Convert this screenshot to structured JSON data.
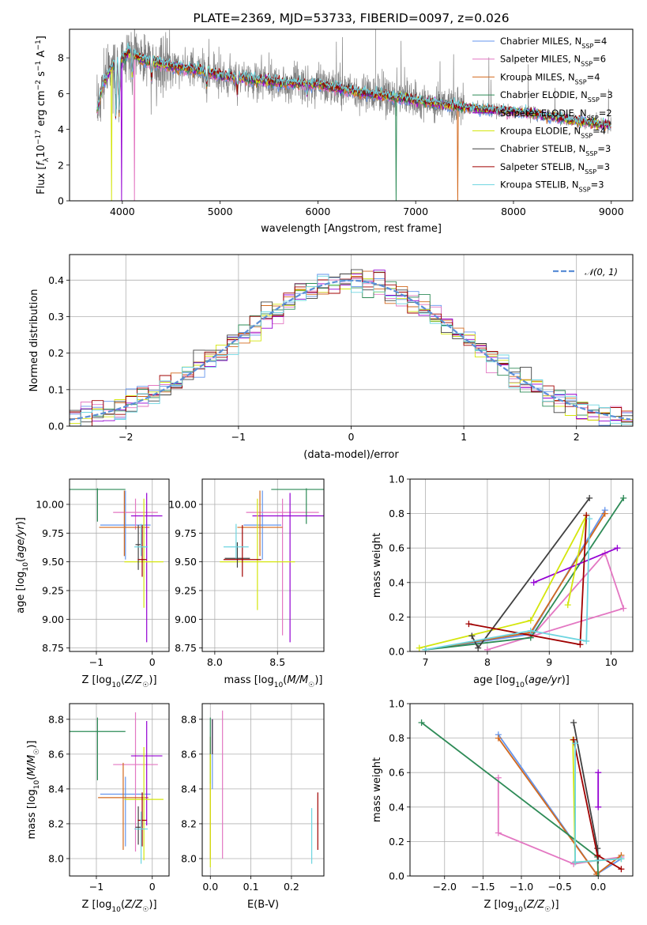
{
  "palette": [
    "#6495ed",
    "#e377c2",
    "#d2691e",
    "#2e8b57",
    "#9400d3",
    "#d4e60d",
    "#404040",
    "#a00000",
    "#6dd5e0"
  ],
  "chart_data": [
    {
      "id": "spectrum",
      "type": "line",
      "title": "PLATE=2369, MJD=53733, FIBERID=0097, z=0.026",
      "xlabel": "wavelength [Angstrom, rest frame]",
      "ylabel": "Flux [f_λ10^-17 erg cm^-2 s^-1 A^-1]",
      "xlim": [
        3460,
        9220
      ],
      "ylim": [
        0,
        9.6
      ],
      "xticks": [
        4000,
        5000,
        6000,
        7000,
        8000,
        9000
      ],
      "yticks": [
        0,
        2,
        4,
        6,
        8
      ],
      "grid": false,
      "legend_position": "top-right",
      "data_color": "#808080",
      "data_x_range": [
        3740,
        9000
      ],
      "model_x_range": [
        3740,
        9000
      ],
      "continuum": {
        "x": [
          3740,
          3800,
          3900,
          4000,
          4050,
          4200,
          4500,
          4800,
          5000,
          5300,
          5600,
          6000,
          6400,
          6800,
          7000,
          7400,
          7800,
          8200,
          8600,
          9000
        ],
        "y": [
          5.0,
          6.5,
          7.5,
          7.9,
          8.3,
          7.9,
          7.5,
          7.3,
          7.0,
          6.8,
          6.6,
          6.5,
          6.1,
          5.8,
          5.6,
          5.3,
          5.05,
          4.9,
          4.5,
          4.2
        ]
      },
      "absorption_lines": [
        {
          "x": 3934,
          "depth": 0.4
        },
        {
          "x": 3968,
          "depth": 0.35
        },
        {
          "x": 4102,
          "depth": 0.15
        },
        {
          "x": 4300,
          "depth": 0.12
        },
        {
          "x": 4861,
          "depth": 0.1
        },
        {
          "x": 5175,
          "depth": 0.12
        },
        {
          "x": 5890,
          "depth": 0.08
        }
      ],
      "model_dropouts": [
        {
          "x": 3890,
          "model": 5
        },
        {
          "x": 4125,
          "model": 1
        },
        {
          "x": 6800,
          "model": 3
        },
        {
          "x": 7430,
          "model": 2
        },
        {
          "x": 3990,
          "model": 4
        }
      ],
      "legend": [
        {
          "base": "Chabrier MILES, N",
          "sub": "SSP",
          "tail": "=4"
        },
        {
          "base": "Salpeter MILES, N",
          "sub": "SSP",
          "tail": "=6"
        },
        {
          "base": "Kroupa MILES, N",
          "sub": "SSP",
          "tail": "=4"
        },
        {
          "base": "Chabrier ELODIE, N",
          "sub": "SSP",
          "tail": "=3"
        },
        {
          "base": "Salpeter ELODIE, N",
          "sub": "SSP",
          "tail": "=2"
        },
        {
          "base": "Kroupa ELODIE, N",
          "sub": "SSP",
          "tail": "=4"
        },
        {
          "base": "Chabrier STELIB, N",
          "sub": "SSP",
          "tail": "=3"
        },
        {
          "base": "Salpeter STELIB, N",
          "sub": "SSP",
          "tail": "=3"
        },
        {
          "base": "Kroupa STELIB, N",
          "sub": "SSP",
          "tail": "=3"
        }
      ]
    },
    {
      "id": "residuals",
      "type": "line",
      "xlabel": "(data-model)/error",
      "ylabel": "Normed distribution",
      "xlim": [
        -2.5,
        2.5
      ],
      "ylim": [
        0,
        0.47
      ],
      "xticks": [
        -2,
        -1,
        0,
        1,
        2
      ],
      "yticks": [
        0.0,
        0.1,
        0.2,
        0.3,
        0.4
      ],
      "grid": true,
      "legend_position": "top-right",
      "legend_label": "𝒩(0, 1)",
      "gaussian_color": "#5b8ed6",
      "bin_width": 0.1
    },
    {
      "id": "age-vs-Z",
      "type": "scatter",
      "xlabel": "Z [log10(Z/Z☉)]",
      "ylabel": "age  [log10(age/yr)]",
      "xlim": [
        -1.48,
        0.3
      ],
      "ylim": [
        8.72,
        10.22
      ],
      "xticks": [
        -1,
        0
      ],
      "yticks": [
        8.75,
        9.0,
        9.25,
        9.5,
        9.75,
        10.0
      ],
      "grid": true,
      "errorbars": [
        {
          "x": -0.48,
          "y": 9.82,
          "xerr": 0.45,
          "yerr": [
            0.3,
            0.3
          ]
        },
        {
          "x": -0.3,
          "y": 9.93,
          "xerr": 0.4,
          "yerr": [
            0.15,
            0.12
          ]
        },
        {
          "x": -0.5,
          "y": 9.8,
          "xerr": 0.45,
          "yerr": [
            0.25,
            0.32
          ]
        },
        {
          "x": -0.98,
          "y": 10.13,
          "xerr": 0.5,
          "yerr": [
            0.28,
            0.01
          ]
        },
        {
          "x": -0.1,
          "y": 9.9,
          "xerr": 0.28,
          "yerr": [
            1.1,
            0.2
          ]
        },
        {
          "x": -0.15,
          "y": 9.5,
          "xerr": 0.35,
          "yerr": [
            0.4,
            0.55
          ]
        },
        {
          "x": -0.25,
          "y": 9.65,
          "xerr": 0.05,
          "yerr": [
            0.22,
            0.17
          ]
        },
        {
          "x": -0.18,
          "y": 9.52,
          "xerr": 0.08,
          "yerr": [
            0.15,
            0.3
          ]
        },
        {
          "x": -0.2,
          "y": 9.63,
          "xerr": 0.12,
          "yerr": [
            0.08,
            0.2
          ]
        }
      ]
    },
    {
      "id": "age-vs-mass",
      "type": "scatter",
      "xlabel": "mass [log10(M/M☉)]",
      "ylabel": "",
      "xlim": [
        7.9,
        8.87
      ],
      "ylim": [
        8.72,
        10.22
      ],
      "xticks": [
        8.0,
        8.5
      ],
      "yticks": [
        8.75,
        9.0,
        9.25,
        9.5,
        9.75,
        10.0
      ],
      "grid": true,
      "errorbars": [
        {
          "x": 8.38,
          "y": 9.82,
          "xerr": 0.15,
          "yerr": [
            0.3,
            0.3
          ]
        },
        {
          "x": 8.54,
          "y": 9.93,
          "xerr": 0.29,
          "yerr": [
            1.07,
            0.12
          ]
        },
        {
          "x": 8.36,
          "y": 9.8,
          "xerr": 0.18,
          "yerr": [
            0.25,
            0.32
          ]
        },
        {
          "x": 8.73,
          "y": 10.13,
          "xerr": 0.28,
          "yerr": [
            0.3,
            0.01
          ]
        },
        {
          "x": 8.6,
          "y": 9.9,
          "xerr": 0.3,
          "yerr": [
            1.1,
            0.2
          ]
        },
        {
          "x": 8.34,
          "y": 9.5,
          "xerr": 0.3,
          "yerr": [
            0.42,
            0.55
          ]
        },
        {
          "x": 8.18,
          "y": 9.53,
          "xerr": 0.1,
          "yerr": [
            0.08,
            0.14
          ]
        },
        {
          "x": 8.22,
          "y": 9.52,
          "xerr": 0.15,
          "yerr": [
            0.15,
            0.3
          ]
        },
        {
          "x": 8.17,
          "y": 9.63,
          "xerr": 0.1,
          "yerr": [
            0.1,
            0.2
          ]
        }
      ]
    },
    {
      "id": "massweight-vs-age",
      "type": "line",
      "xlabel": "age  [log10(age/yr)]",
      "ylabel": "mass weight",
      "xlim": [
        6.75,
        10.35
      ],
      "ylim": [
        0.0,
        1.0
      ],
      "xticks": [
        7,
        8,
        9,
        10
      ],
      "yticks": [
        0.0,
        0.2,
        0.4,
        0.6,
        0.8,
        1.0
      ],
      "grid": true,
      "series": [
        {
          "points": [
            [
              7.0,
              0.01
            ],
            [
              8.7,
              0.1
            ],
            [
              9.9,
              0.82
            ]
          ]
        },
        {
          "points": [
            [
              8.7,
              0.08
            ],
            [
              9.9,
              0.57
            ],
            [
              10.2,
              0.25
            ],
            [
              8.0,
              0.01
            ]
          ]
        },
        {
          "points": [
            [
              7.0,
              0.01
            ],
            [
              8.7,
              0.11
            ],
            [
              9.9,
              0.8
            ]
          ]
        },
        {
          "points": [
            [
              7.0,
              0.01
            ],
            [
              8.7,
              0.08
            ],
            [
              10.2,
              0.89
            ]
          ]
        },
        {
          "points": [
            [
              8.75,
              0.4
            ],
            [
              10.1,
              0.6
            ]
          ]
        },
        {
          "points": [
            [
              6.9,
              0.02
            ],
            [
              8.7,
              0.18
            ],
            [
              9.6,
              0.79
            ],
            [
              9.3,
              0.27
            ]
          ]
        },
        {
          "points": [
            [
              7.75,
              0.09
            ],
            [
              7.85,
              0.02
            ],
            [
              9.65,
              0.89
            ]
          ]
        },
        {
          "points": [
            [
              7.7,
              0.16
            ],
            [
              9.5,
              0.04
            ],
            [
              9.6,
              0.79
            ]
          ]
        },
        {
          "points": [
            [
              7.0,
              0.01
            ],
            [
              8.7,
              0.12
            ],
            [
              9.6,
              0.06
            ],
            [
              9.65,
              0.77
            ]
          ]
        }
      ]
    },
    {
      "id": "mass-vs-Z",
      "type": "scatter",
      "xlabel": "Z [log10(Z/Z☉)]",
      "ylabel": "mass [log10(M/M☉)]",
      "xlim": [
        -1.48,
        0.3
      ],
      "ylim": [
        7.9,
        8.89
      ],
      "xticks": [
        -1,
        0
      ],
      "yticks": [
        8.0,
        8.2,
        8.4,
        8.6,
        8.8
      ],
      "grid": true,
      "errorbars": [
        {
          "x": -0.48,
          "y": 8.37,
          "xerr": 0.45,
          "yerr": [
            0.3,
            0.1
          ]
        },
        {
          "x": -0.3,
          "y": 8.54,
          "xerr": 0.4,
          "yerr": [
            0.5,
            0.3
          ]
        },
        {
          "x": -0.52,
          "y": 8.35,
          "xerr": 0.45,
          "yerr": [
            0.3,
            0.2
          ]
        },
        {
          "x": -0.98,
          "y": 8.73,
          "xerr": 0.5,
          "yerr": [
            0.28,
            0.08
          ]
        },
        {
          "x": -0.1,
          "y": 8.59,
          "xerr": 0.28,
          "yerr": [
            0.4,
            0.2
          ]
        },
        {
          "x": -0.15,
          "y": 8.34,
          "xerr": 0.35,
          "yerr": [
            0.35,
            0.3
          ]
        },
        {
          "x": -0.25,
          "y": 8.18,
          "xerr": 0.05,
          "yerr": [
            0.1,
            0.12
          ]
        },
        {
          "x": -0.18,
          "y": 8.22,
          "xerr": 0.08,
          "yerr": [
            0.15,
            0.16
          ]
        },
        {
          "x": -0.2,
          "y": 8.17,
          "xerr": 0.12,
          "yerr": [
            0.2,
            0.1
          ]
        }
      ]
    },
    {
      "id": "mass-vs-ebv",
      "type": "scatter",
      "xlabel": "E(B-V)",
      "ylabel": "",
      "xlim": [
        -0.02,
        0.28
      ],
      "ylim": [
        7.9,
        8.89
      ],
      "xticks": [
        0.0,
        0.1,
        0.2
      ],
      "yticks": [
        8.0,
        8.2,
        8.4,
        8.6,
        8.8
      ],
      "grid": true,
      "errorbars": [
        {
          "x": 0.005,
          "y": 8.7,
          "xerr": 0,
          "yerr": [
            0.3,
            0.1
          ]
        },
        {
          "x": 0.03,
          "y": 8.55,
          "xerr": 0,
          "yerr": [
            0.55,
            0.3
          ]
        },
        {
          "x": 0.0,
          "y": 8.5,
          "xerr": 0,
          "yerr": [
            0.5,
            0.2
          ]
        },
        {
          "x": 0.0,
          "y": 8.73,
          "xerr": 0,
          "yerr": [
            0.3,
            0.08
          ]
        },
        {
          "x": 0.005,
          "y": 8.7,
          "xerr": 0,
          "yerr": [
            0.1,
            0.1
          ]
        },
        {
          "x": 0.0,
          "y": 8.35,
          "xerr": 0,
          "yerr": [
            0.4,
            0.25
          ]
        },
        {
          "x": 0.005,
          "y": 8.7,
          "xerr": 0,
          "yerr": [
            0.1,
            0.1
          ]
        },
        {
          "x": 0.265,
          "y": 8.2,
          "xerr": 0,
          "yerr": [
            0.15,
            0.18
          ]
        },
        {
          "x": 0.25,
          "y": 8.17,
          "xerr": 0,
          "yerr": [
            0.2,
            0.12
          ]
        }
      ]
    },
    {
      "id": "massweight-vs-Z",
      "type": "line",
      "xlabel": "Z [log10(Z/Z☉)]",
      "ylabel": "mass weight",
      "xlim": [
        -2.45,
        0.45
      ],
      "ylim": [
        0.0,
        1.0
      ],
      "xticks": [
        -2.0,
        -1.5,
        -1.0,
        -0.5,
        0.0
      ],
      "yticks": [
        0.0,
        0.2,
        0.4,
        0.6,
        0.8,
        1.0
      ],
      "grid": true,
      "series": [
        {
          "points": [
            [
              -1.3,
              0.82
            ],
            [
              -0.02,
              0.01
            ],
            [
              0.3,
              0.1
            ]
          ]
        },
        {
          "points": [
            [
              -1.3,
              0.57
            ],
            [
              -1.3,
              0.25
            ],
            [
              -0.32,
              0.07
            ],
            [
              0.3,
              0.11
            ]
          ]
        },
        {
          "points": [
            [
              -1.3,
              0.8
            ],
            [
              -0.02,
              0.01
            ],
            [
              0.3,
              0.12
            ]
          ]
        },
        {
          "points": [
            [
              -2.3,
              0.89
            ],
            [
              -0.01,
              0.11
            ],
            [
              0.0,
              0.0
            ]
          ]
        },
        {
          "points": [
            [
              0.0,
              0.6
            ],
            [
              0.0,
              0.4
            ]
          ]
        },
        {
          "points": [
            [
              -0.33,
              0.79
            ],
            [
              -0.3,
              0.08
            ],
            [
              0.3,
              0.1
            ]
          ]
        },
        {
          "points": [
            [
              -0.32,
              0.89
            ],
            [
              -0.01,
              0.16
            ],
            [
              0.0,
              0.09
            ]
          ]
        },
        {
          "points": [
            [
              -0.32,
              0.79
            ],
            [
              -0.01,
              0.12
            ],
            [
              0.3,
              0.04
            ]
          ]
        },
        {
          "points": [
            [
              -0.3,
              0.77
            ],
            [
              -0.3,
              0.08
            ],
            [
              0.3,
              0.1
            ]
          ]
        }
      ]
    }
  ]
}
